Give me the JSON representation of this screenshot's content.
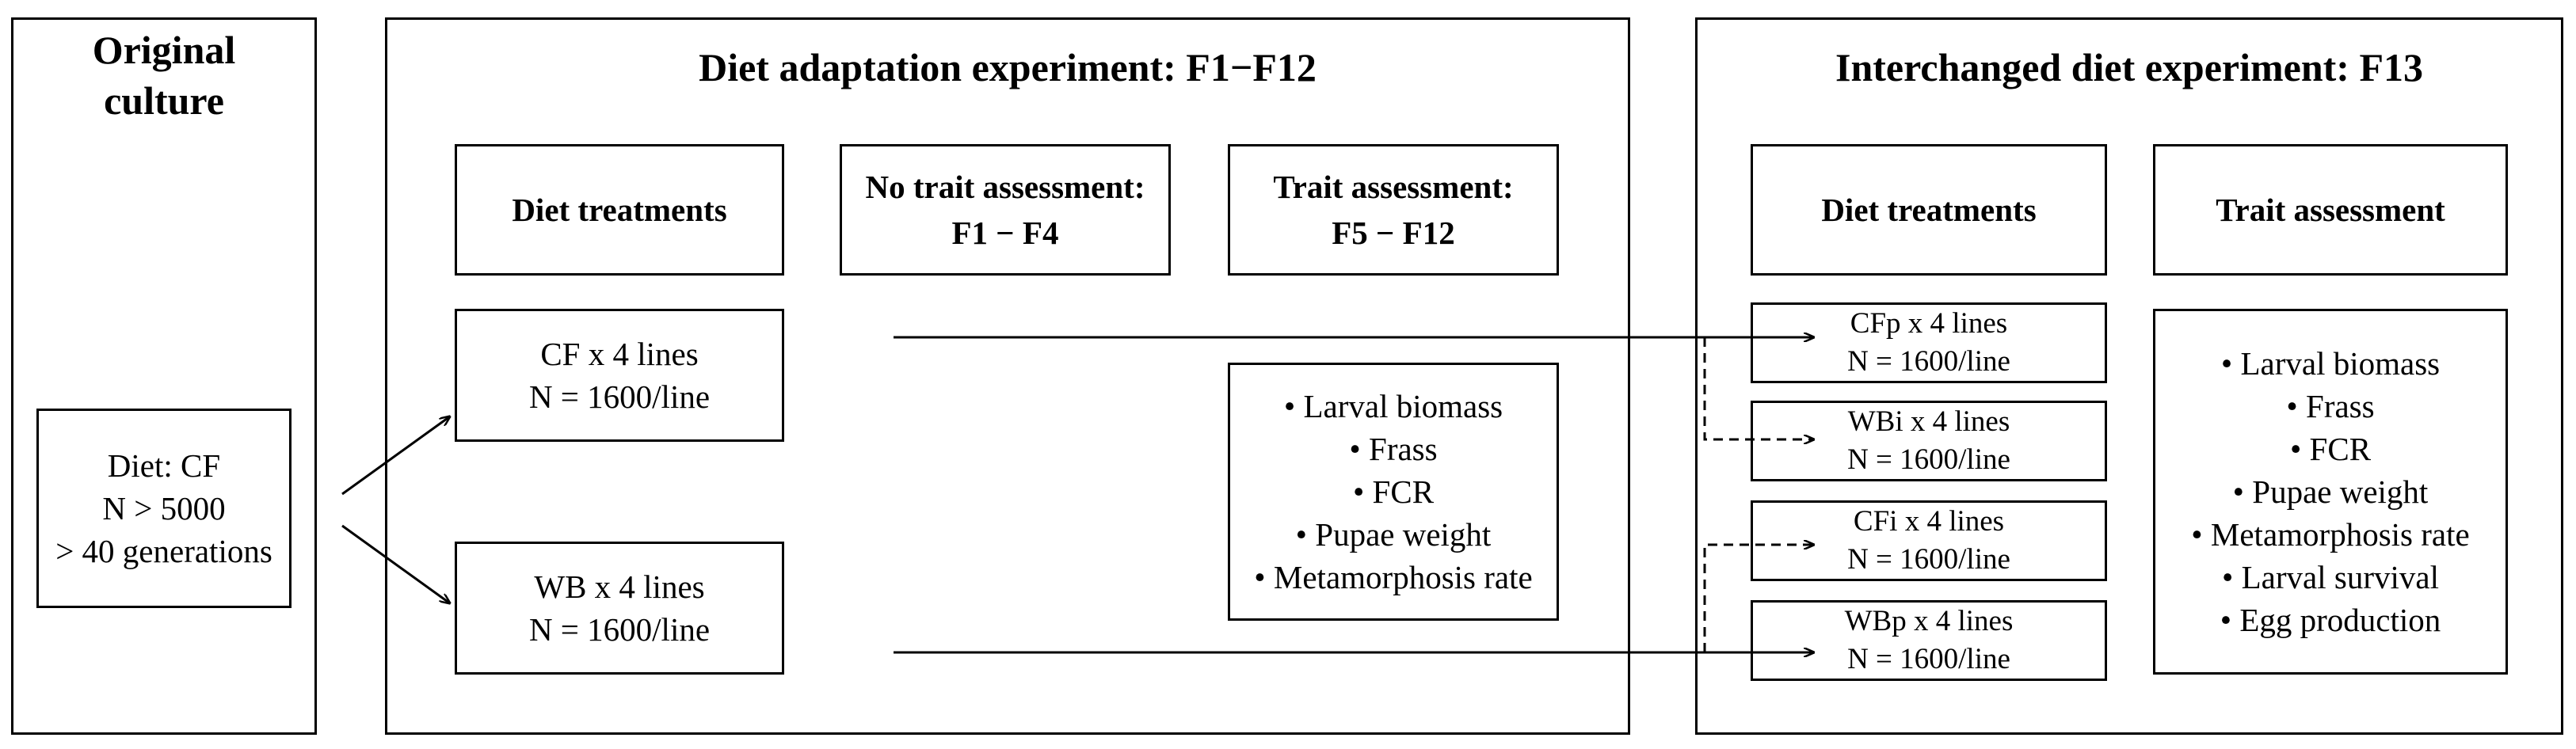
{
  "original_culture": {
    "title_lines": [
      "Original",
      "culture"
    ],
    "diet_box_lines": [
      "Diet: CF",
      "N > 5000",
      "> 40 generations"
    ]
  },
  "diet_adaptation": {
    "title": "Diet adaptation experiment: F1−F12",
    "header_diet_treatments": "Diet treatments",
    "header_no_trait_lines": [
      "No trait assessment:",
      "F1 − F4"
    ],
    "header_trait_lines": [
      "Trait assessment:",
      "F5 − F12"
    ],
    "cf_lines": [
      "CF x 4 lines",
      "N = 1600/line"
    ],
    "wb_lines": [
      "WB x 4 lines",
      "N = 1600/line"
    ],
    "traits": [
      "Larval biomass",
      "Frass",
      "FCR",
      "Pupae weight",
      "Metamorphosis rate"
    ]
  },
  "interchanged": {
    "title": "Interchanged diet experiment: F13",
    "header_diet_treatments": "Diet treatments",
    "header_trait": "Trait assessment",
    "treatments": [
      {
        "lines": [
          "CFp x 4 lines",
          "N = 1600/line"
        ]
      },
      {
        "lines": [
          "WBi x 4 lines",
          "N = 1600/line"
        ]
      },
      {
        "lines": [
          "CFi x 4 lines",
          "N = 1600/line"
        ]
      },
      {
        "lines": [
          "WBp x 4 lines",
          "N = 1600/line"
        ]
      }
    ],
    "traits": [
      "Larval biomass",
      "Frass",
      "FCR",
      "Pupae weight",
      "Metamorphosis rate",
      "Larval survival",
      "Egg production"
    ]
  }
}
